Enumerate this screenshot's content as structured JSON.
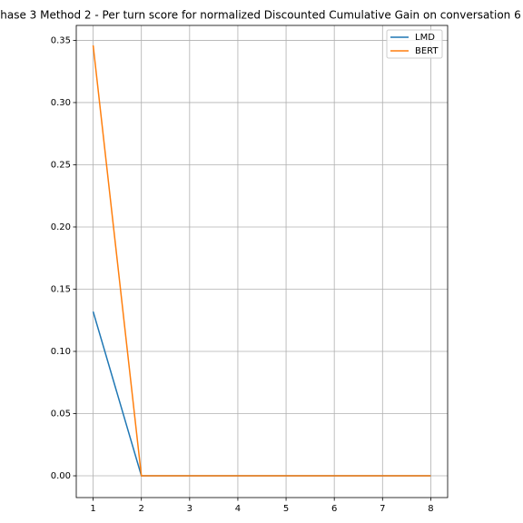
{
  "chart_data": {
    "type": "line",
    "title": "hase 3 Method 2 - Per turn score for normalized Discounted Cumulative Gain on conversation 6",
    "x": [
      1,
      2,
      3,
      4,
      5,
      6,
      7,
      8
    ],
    "series": [
      {
        "name": "LMD",
        "color": "#1f77b4",
        "values": [
          0.132,
          0,
          0,
          0,
          0,
          0,
          0,
          0
        ]
      },
      {
        "name": "BERT",
        "color": "#ff7f0e",
        "values": [
          0.346,
          0,
          0,
          0,
          0,
          0,
          0,
          0
        ]
      }
    ],
    "xlim": [
      0.65,
      8.35
    ],
    "ylim": [
      -0.0175,
      0.362
    ],
    "xticks": [
      1,
      2,
      3,
      4,
      5,
      6,
      7,
      8
    ],
    "yticks": [
      {
        "value": 0,
        "label": "0.00"
      },
      {
        "value": 0.05,
        "label": "0.05"
      },
      {
        "value": 0.1,
        "label": "0.10"
      },
      {
        "value": 0.15,
        "label": "0.15"
      },
      {
        "value": 0.2,
        "label": "0.20"
      },
      {
        "value": 0.25,
        "label": "0.25"
      },
      {
        "value": 0.3,
        "label": "0.30"
      },
      {
        "value": 0.35,
        "label": "0.35"
      }
    ],
    "grid": true,
    "legend": "upper right"
  }
}
